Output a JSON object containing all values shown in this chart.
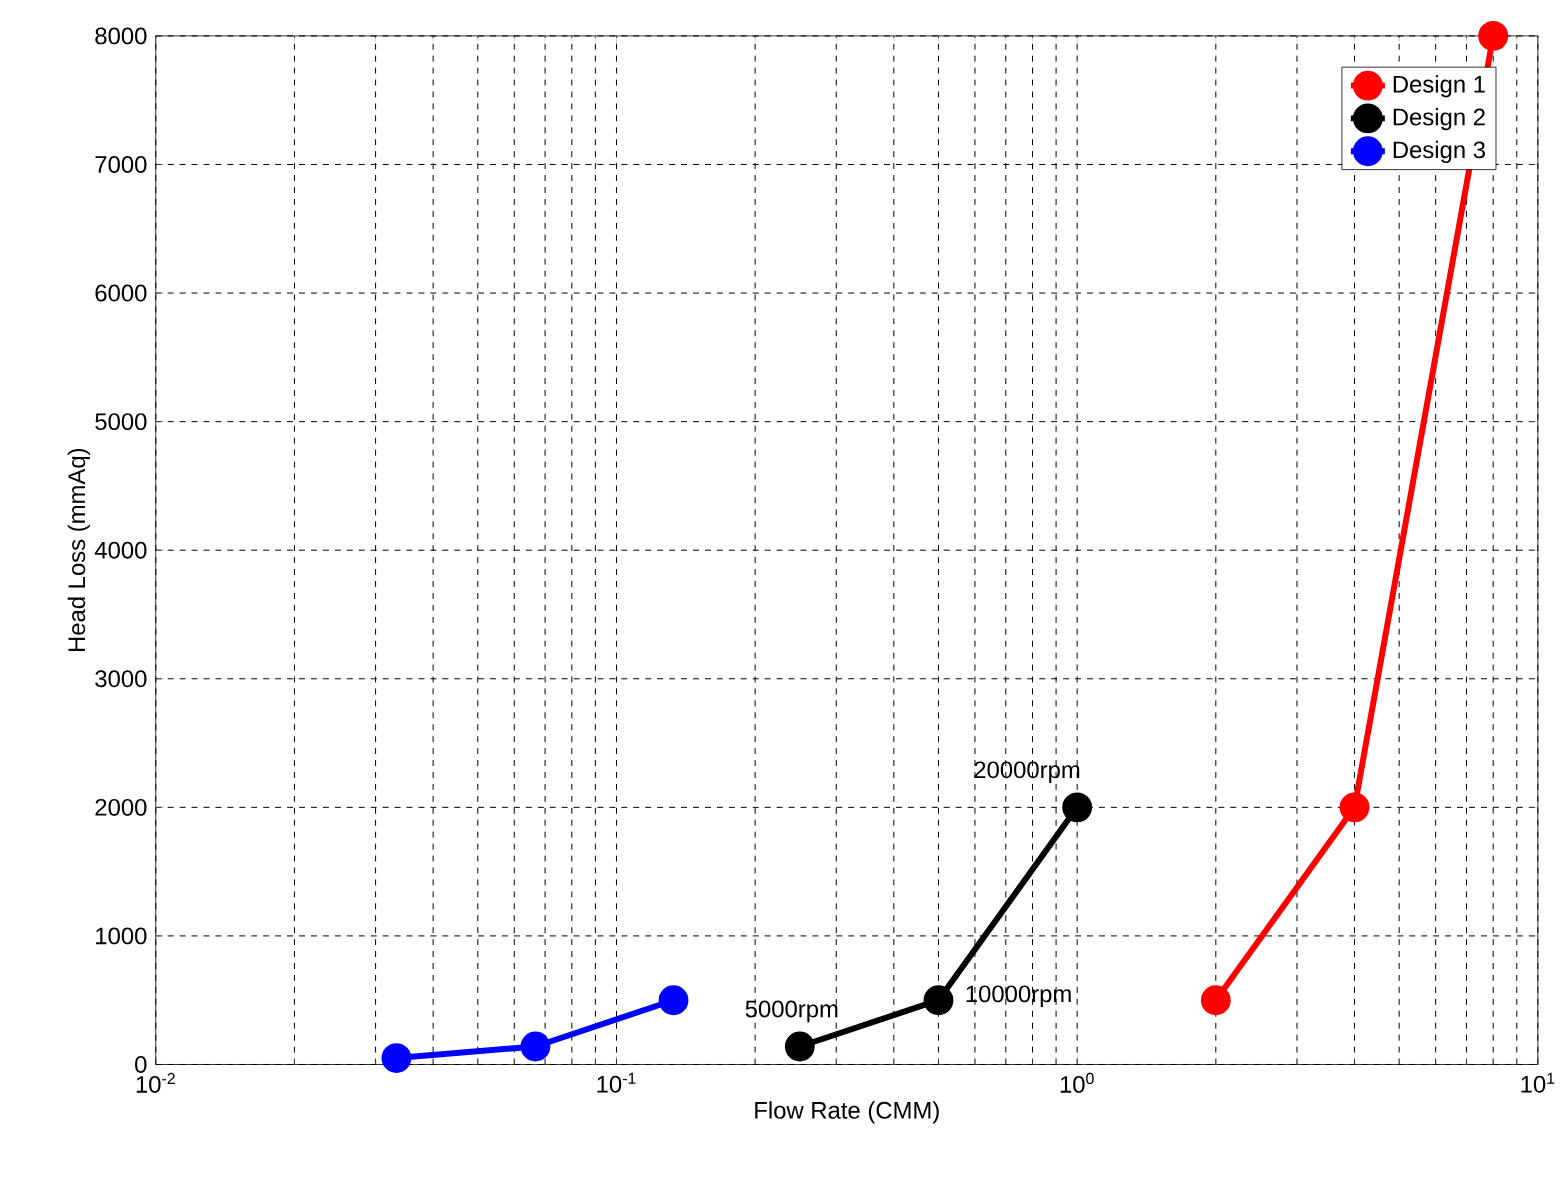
{
  "chart_data": {
    "type": "line",
    "xlabel": "Flow Rate (CMM)",
    "ylabel": "Head Loss (mmAq)",
    "log": "x",
    "xlim": [
      0.01,
      10
    ],
    "ylim": [
      0,
      8000
    ],
    "xticks": [
      {
        "value": 0.01,
        "label": "10$^{-2}$"
      },
      {
        "value": 0.1,
        "label": "10$^{-1}$"
      },
      {
        "value": 1,
        "label": "10$^{0}$"
      },
      {
        "value": 10,
        "label": "10$^{1}$"
      }
    ],
    "yticks": [
      0,
      1000,
      2000,
      3000,
      4000,
      5000,
      6000,
      7000,
      8000
    ],
    "grid": true,
    "legend": "top right",
    "marker": "circle",
    "line_style": "solid",
    "series": [
      {
        "name": "Design 1",
        "color": "#ff0000",
        "x": [
          2,
          4,
          8
        ],
        "values": [
          500,
          2000,
          8000
        ]
      },
      {
        "name": "Design 2",
        "color": "#000000",
        "x": [
          0.25,
          0.5,
          1
        ],
        "values": [
          140,
          500,
          2000
        ]
      },
      {
        "name": "Design 3",
        "color": "#0000ff",
        "x": [
          0.0333,
          0.0667,
          0.133
        ],
        "values": [
          50,
          140,
          500
        ]
      }
    ],
    "annotations": [
      {
        "text": "5000rpm",
        "x": 0.25,
        "y": 140
      },
      {
        "text": "10000rpm",
        "x": 0.5,
        "y": 500
      },
      {
        "text": "20000rpm",
        "x": 1,
        "y": 2000
      }
    ]
  }
}
